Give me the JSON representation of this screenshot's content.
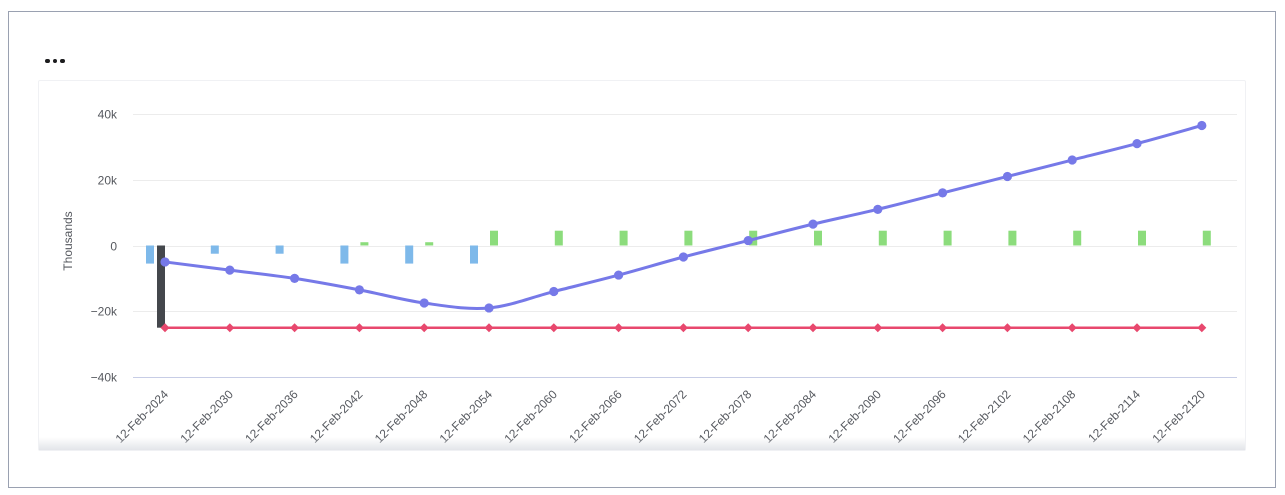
{
  "window": {
    "menu_icon": "ellipsis-horizontal"
  },
  "colors": {
    "panel_border": "#9aa1b1",
    "card_border": "#f0f1f4",
    "gridline": "#ececec",
    "axis_baseline": "#c7cde6",
    "label_text": "#56595f",
    "purple_line": "#7679e8",
    "red_line": "#e8486e",
    "blue_bar": "#7eb9ea",
    "green_bar": "#8cdc7c",
    "dark_bar": "#44474c"
  },
  "chart_data": {
    "type": "combo",
    "title": "",
    "categories": [
      "12-Feb-2024",
      "12-Feb-2030",
      "12-Feb-2036",
      "12-Feb-2042",
      "12-Feb-2048",
      "12-Feb-2054",
      "12-Feb-2060",
      "12-Feb-2066",
      "12-Feb-2072",
      "12-Feb-2078",
      "12-Feb-2084",
      "12-Feb-2090",
      "12-Feb-2096",
      "12-Feb-2102",
      "12-Feb-2108",
      "12-Feb-2114",
      "12-Feb-2120"
    ],
    "xlabel": "",
    "ylabel": "Thousands",
    "ylim": [
      -40,
      40
    ],
    "unit": "k",
    "grid": true,
    "legend": "none",
    "y_ticks": [
      {
        "label": "40k",
        "value": 40
      },
      {
        "label": "20k",
        "value": 20
      },
      {
        "label": "0",
        "value": 0
      },
      {
        "label": "−20k",
        "value": -20
      },
      {
        "label": "−40k",
        "value": -40
      }
    ],
    "x_label_rotation": -45,
    "series": [
      {
        "name": "blue-bars",
        "type": "bar",
        "color": "#7eb9ea",
        "values": [
          -5.5,
          -2.5,
          -2.5,
          -5.5,
          -5.5,
          -5.5,
          null,
          null,
          null,
          null,
          null,
          null,
          null,
          null,
          null,
          null,
          null
        ]
      },
      {
        "name": "dark-bar",
        "type": "bar",
        "color": "#44474c",
        "values": [
          -25,
          null,
          null,
          null,
          null,
          null,
          null,
          null,
          null,
          null,
          null,
          null,
          null,
          null,
          null,
          null,
          null
        ]
      },
      {
        "name": "green-bars",
        "type": "bar",
        "color": "#8cdc7c",
        "values": [
          null,
          null,
          null,
          1,
          1,
          4.5,
          4.5,
          4.5,
          4.5,
          4.5,
          4.5,
          4.5,
          4.5,
          4.5,
          4.5,
          4.5,
          4.5
        ]
      },
      {
        "name": "red-line",
        "type": "line",
        "marker": "diamond",
        "smooth": false,
        "color": "#e8486e",
        "values": [
          -25,
          -25,
          -25,
          -25,
          -25,
          -25,
          -25,
          -25,
          -25,
          -25,
          -25,
          -25,
          -25,
          -25,
          -25,
          -25,
          -25
        ]
      },
      {
        "name": "purple-line",
        "type": "line",
        "marker": "circle",
        "smooth": true,
        "color": "#7679e8",
        "values": [
          -5,
          -7.5,
          -10,
          -13.5,
          -17.5,
          -19,
          -14,
          -9,
          -3.5,
          1.5,
          6.5,
          11,
          16,
          21,
          26,
          31,
          36.5
        ]
      }
    ]
  }
}
